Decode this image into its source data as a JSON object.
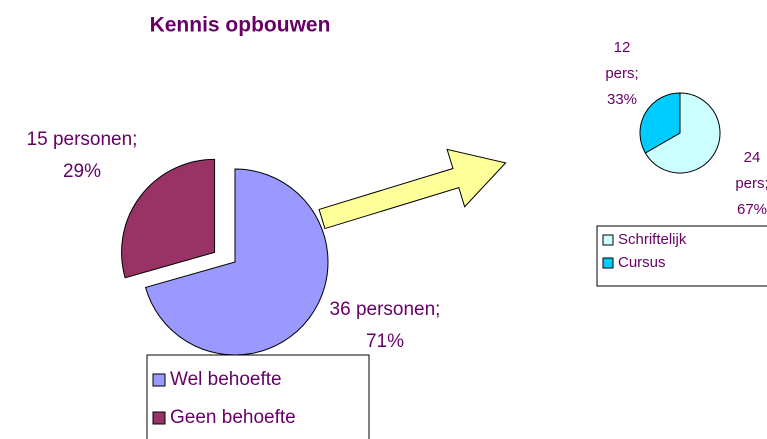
{
  "chart_data": [
    {
      "type": "pie",
      "title": "Kennis opbouwen",
      "categories": [
        "Wel behoefte",
        "Geen behoefte"
      ],
      "values": [
        36,
        15
      ],
      "value_labels": [
        "36 personen;\n71%",
        "15 personen;\n29%"
      ],
      "colors": [
        "#9999ff",
        "#993366"
      ],
      "explode": [
        false,
        true
      ],
      "legend": "bottom"
    },
    {
      "type": "pie",
      "categories": [
        "Schriftelijk",
        "Cursus"
      ],
      "values": [
        24,
        12
      ],
      "value_labels": [
        "24\npers;\n67%",
        "12\npers;\n33%"
      ],
      "colors": [
        "#ccffff",
        "#00ccff"
      ],
      "explode": [
        false,
        false
      ],
      "legend": "right"
    }
  ]
}
